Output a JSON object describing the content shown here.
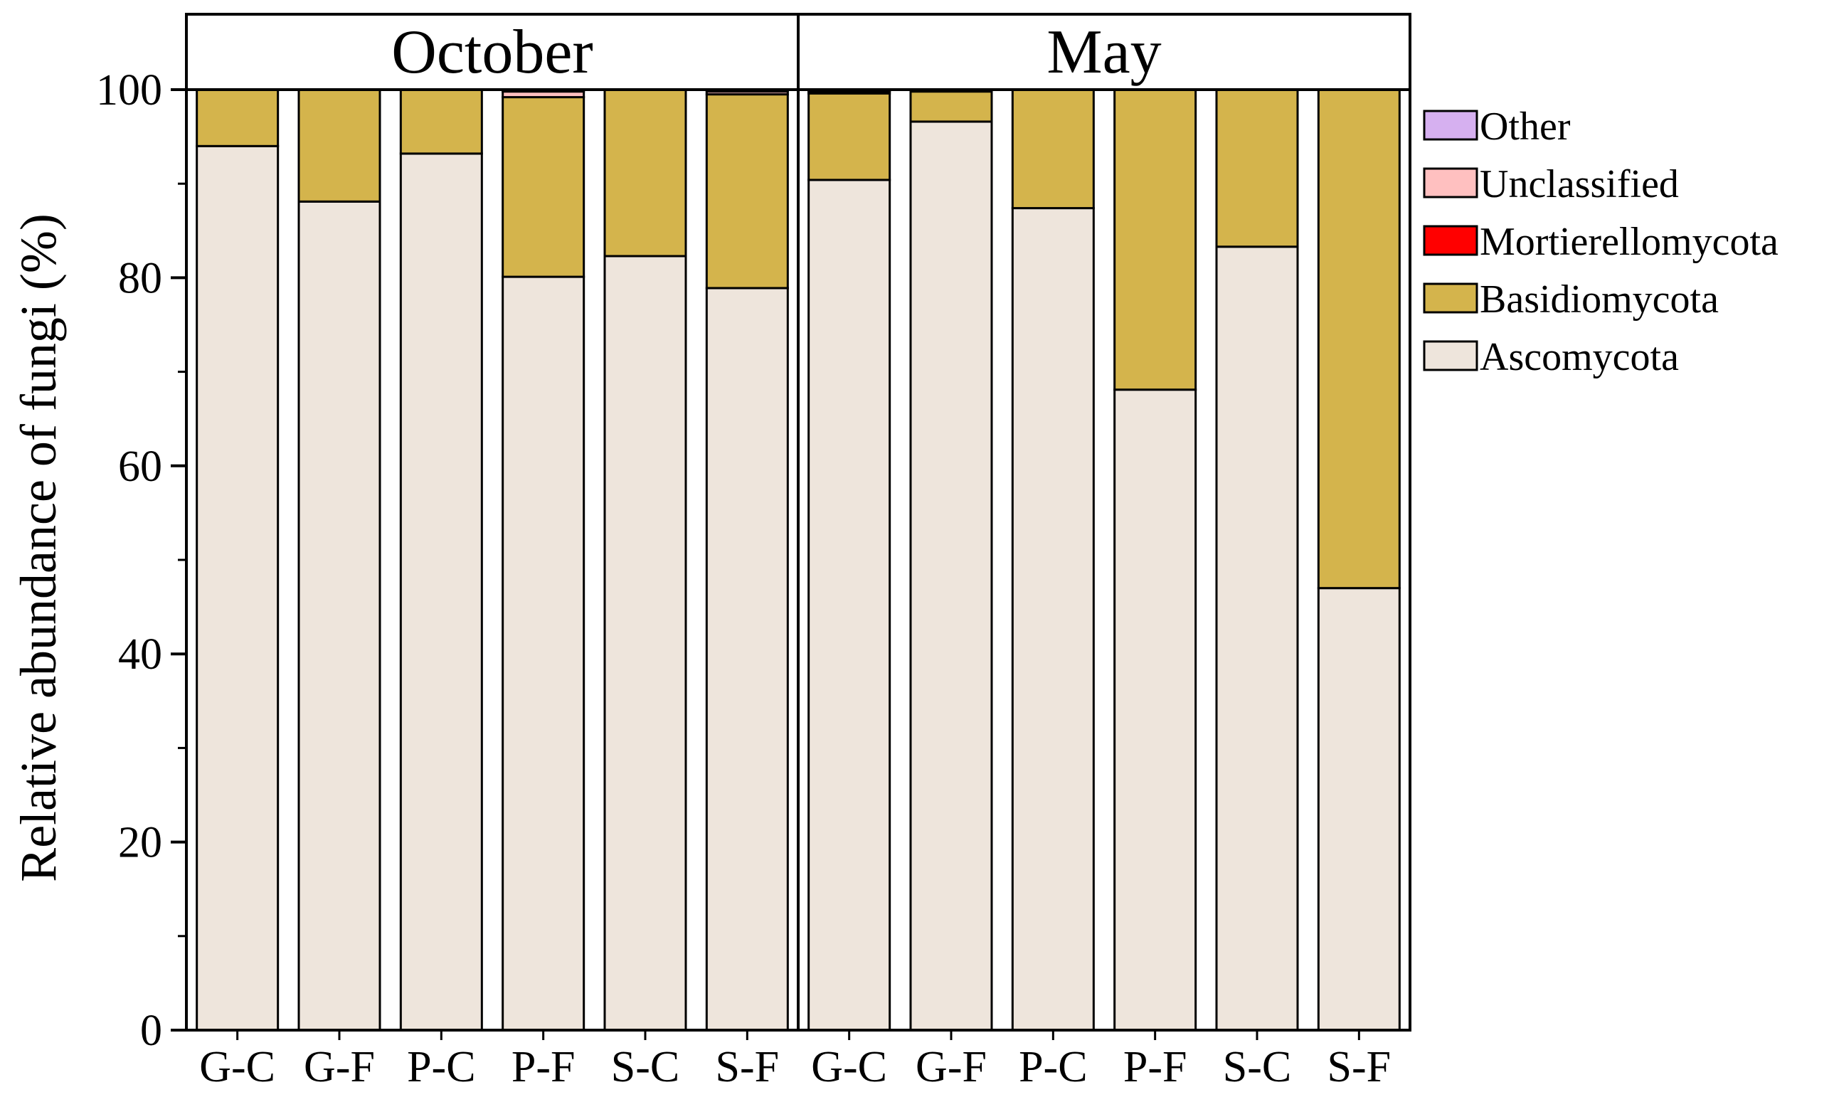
{
  "chart_data": {
    "type": "bar",
    "stacked": true,
    "ylabel": "Relative abundance of fungi (%)",
    "xlabel": "",
    "ylim": [
      0,
      100
    ],
    "yticks": [
      0,
      20,
      40,
      60,
      80,
      100
    ],
    "legend_position": "right",
    "panels": [
      "October",
      "May"
    ],
    "categories": [
      "G-C",
      "G-F",
      "P-C",
      "P-F",
      "S-C",
      "S-F",
      "G-C",
      "G-F",
      "P-C",
      "P-F",
      "S-C",
      "S-F"
    ],
    "panel_of_category": [
      0,
      0,
      0,
      0,
      0,
      0,
      1,
      1,
      1,
      1,
      1,
      1
    ],
    "series": [
      {
        "name": "Ascomycota",
        "color": "#EEE5DC",
        "values": [
          94.0,
          88.1,
          93.2,
          80.1,
          82.3,
          78.9,
          90.4,
          96.6,
          87.4,
          68.1,
          83.3,
          47.0
        ]
      },
      {
        "name": "Basidiomycota",
        "color": "#D4B44C",
        "values": [
          6.0,
          11.9,
          6.8,
          19.1,
          17.7,
          20.6,
          9.2,
          3.2,
          12.6,
          31.9,
          16.7,
          53.0
        ]
      },
      {
        "name": "Mortierellomycota",
        "color": "#FF0000",
        "values": [
          0,
          0,
          0,
          0,
          0,
          0,
          0.2,
          0.1,
          0,
          0,
          0,
          0
        ]
      },
      {
        "name": "Unclassified",
        "color": "#FFC0C0",
        "values": [
          0,
          0,
          0,
          0.6,
          0,
          0.3,
          0.1,
          0,
          0,
          0,
          0,
          0
        ]
      },
      {
        "name": "Other",
        "color": "#D6B0F0",
        "values": [
          0,
          0,
          0,
          0.2,
          0,
          0.2,
          0.1,
          0.1,
          0,
          0,
          0,
          0
        ]
      }
    ]
  }
}
